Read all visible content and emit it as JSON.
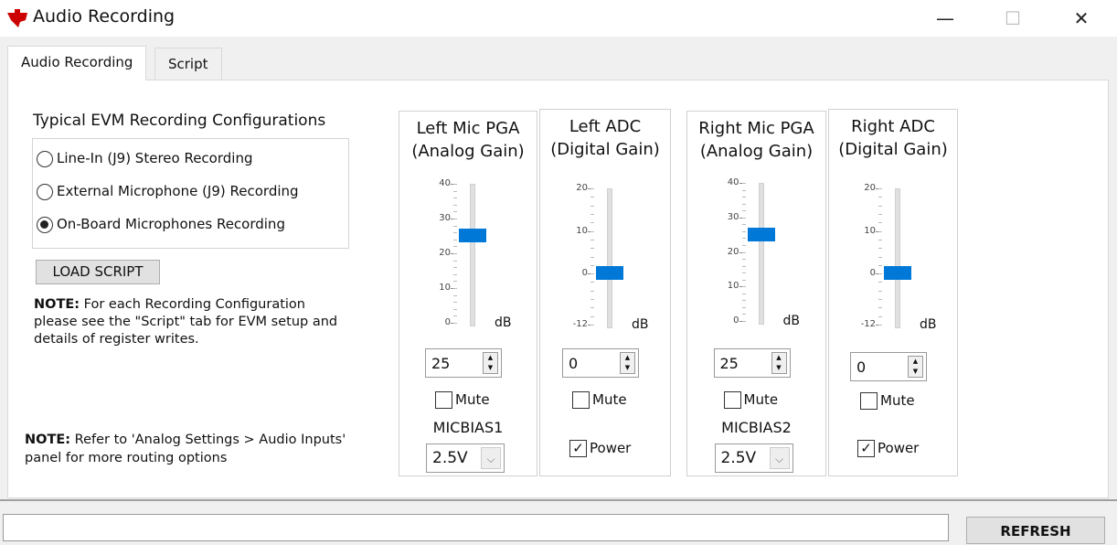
{
  "window": {
    "title": "Audio Recording",
    "minimize": "—",
    "maximize": "☐",
    "close": "✕"
  },
  "tabs": [
    {
      "label": "Audio Recording",
      "active": true
    },
    {
      "label": "Script",
      "active": false
    }
  ],
  "configs": {
    "title": "Typical EVM Recording Configurations",
    "options": [
      {
        "label": "Line-In (J9) Stereo Recording",
        "selected": false
      },
      {
        "label": "External Microphone (J9) Recording",
        "selected": false
      },
      {
        "label": "On-Board Microphones Recording",
        "selected": true
      }
    ]
  },
  "load_script": "LOAD SCRIPT",
  "note1": {
    "bold": "NOTE:",
    "text": " For each Recording Configuration please see the \"Script\" tab for EVM setup and details of register writes."
  },
  "note2": {
    "bold": "NOTE:",
    "text": " Refer to 'Analog Settings > Audio Inputs' panel for more routing options"
  },
  "accent": "#0078d7",
  "channels": [
    {
      "title1": "Left Mic PGA",
      "title2": "(Analog Gain)",
      "ticks": [
        "40",
        "30",
        "20",
        "10",
        "0"
      ],
      "min": 0,
      "max": 40,
      "value": 25,
      "unit": "dB",
      "spin": "25",
      "mute_label": "Mute",
      "mute": false,
      "micbias_label": "MICBIAS1",
      "micbias": "2.5V"
    },
    {
      "title1": "Left ADC",
      "title2": "(Digital Gain)",
      "ticks": [
        "20",
        "10",
        "0",
        "-12"
      ],
      "tickvals": [
        20,
        10,
        0,
        -12
      ],
      "min": -12,
      "max": 20,
      "value": 0,
      "unit": "dB",
      "spin": "0",
      "mute_label": "Mute",
      "mute": false,
      "power_label": "Power",
      "power": true
    },
    {
      "title1": "Right Mic PGA",
      "title2": "(Analog Gain)",
      "ticks": [
        "40",
        "30",
        "20",
        "10",
        "0"
      ],
      "min": 0,
      "max": 40,
      "value": 25,
      "unit": "dB",
      "spin": "25",
      "mute_label": "Mute",
      "mute": false,
      "micbias_label": "MICBIAS2",
      "micbias": "2.5V"
    },
    {
      "title1": "Right ADC",
      "title2": "(Digital Gain)",
      "ticks": [
        "20",
        "10",
        "0",
        "-12"
      ],
      "tickvals": [
        20,
        10,
        0,
        -12
      ],
      "min": -12,
      "max": 20,
      "value": 0,
      "unit": "dB",
      "spin": "0",
      "mute_label": "Mute",
      "mute": false,
      "power_label": "Power",
      "power": true
    }
  ],
  "status_text": "",
  "refresh": "REFRESH"
}
